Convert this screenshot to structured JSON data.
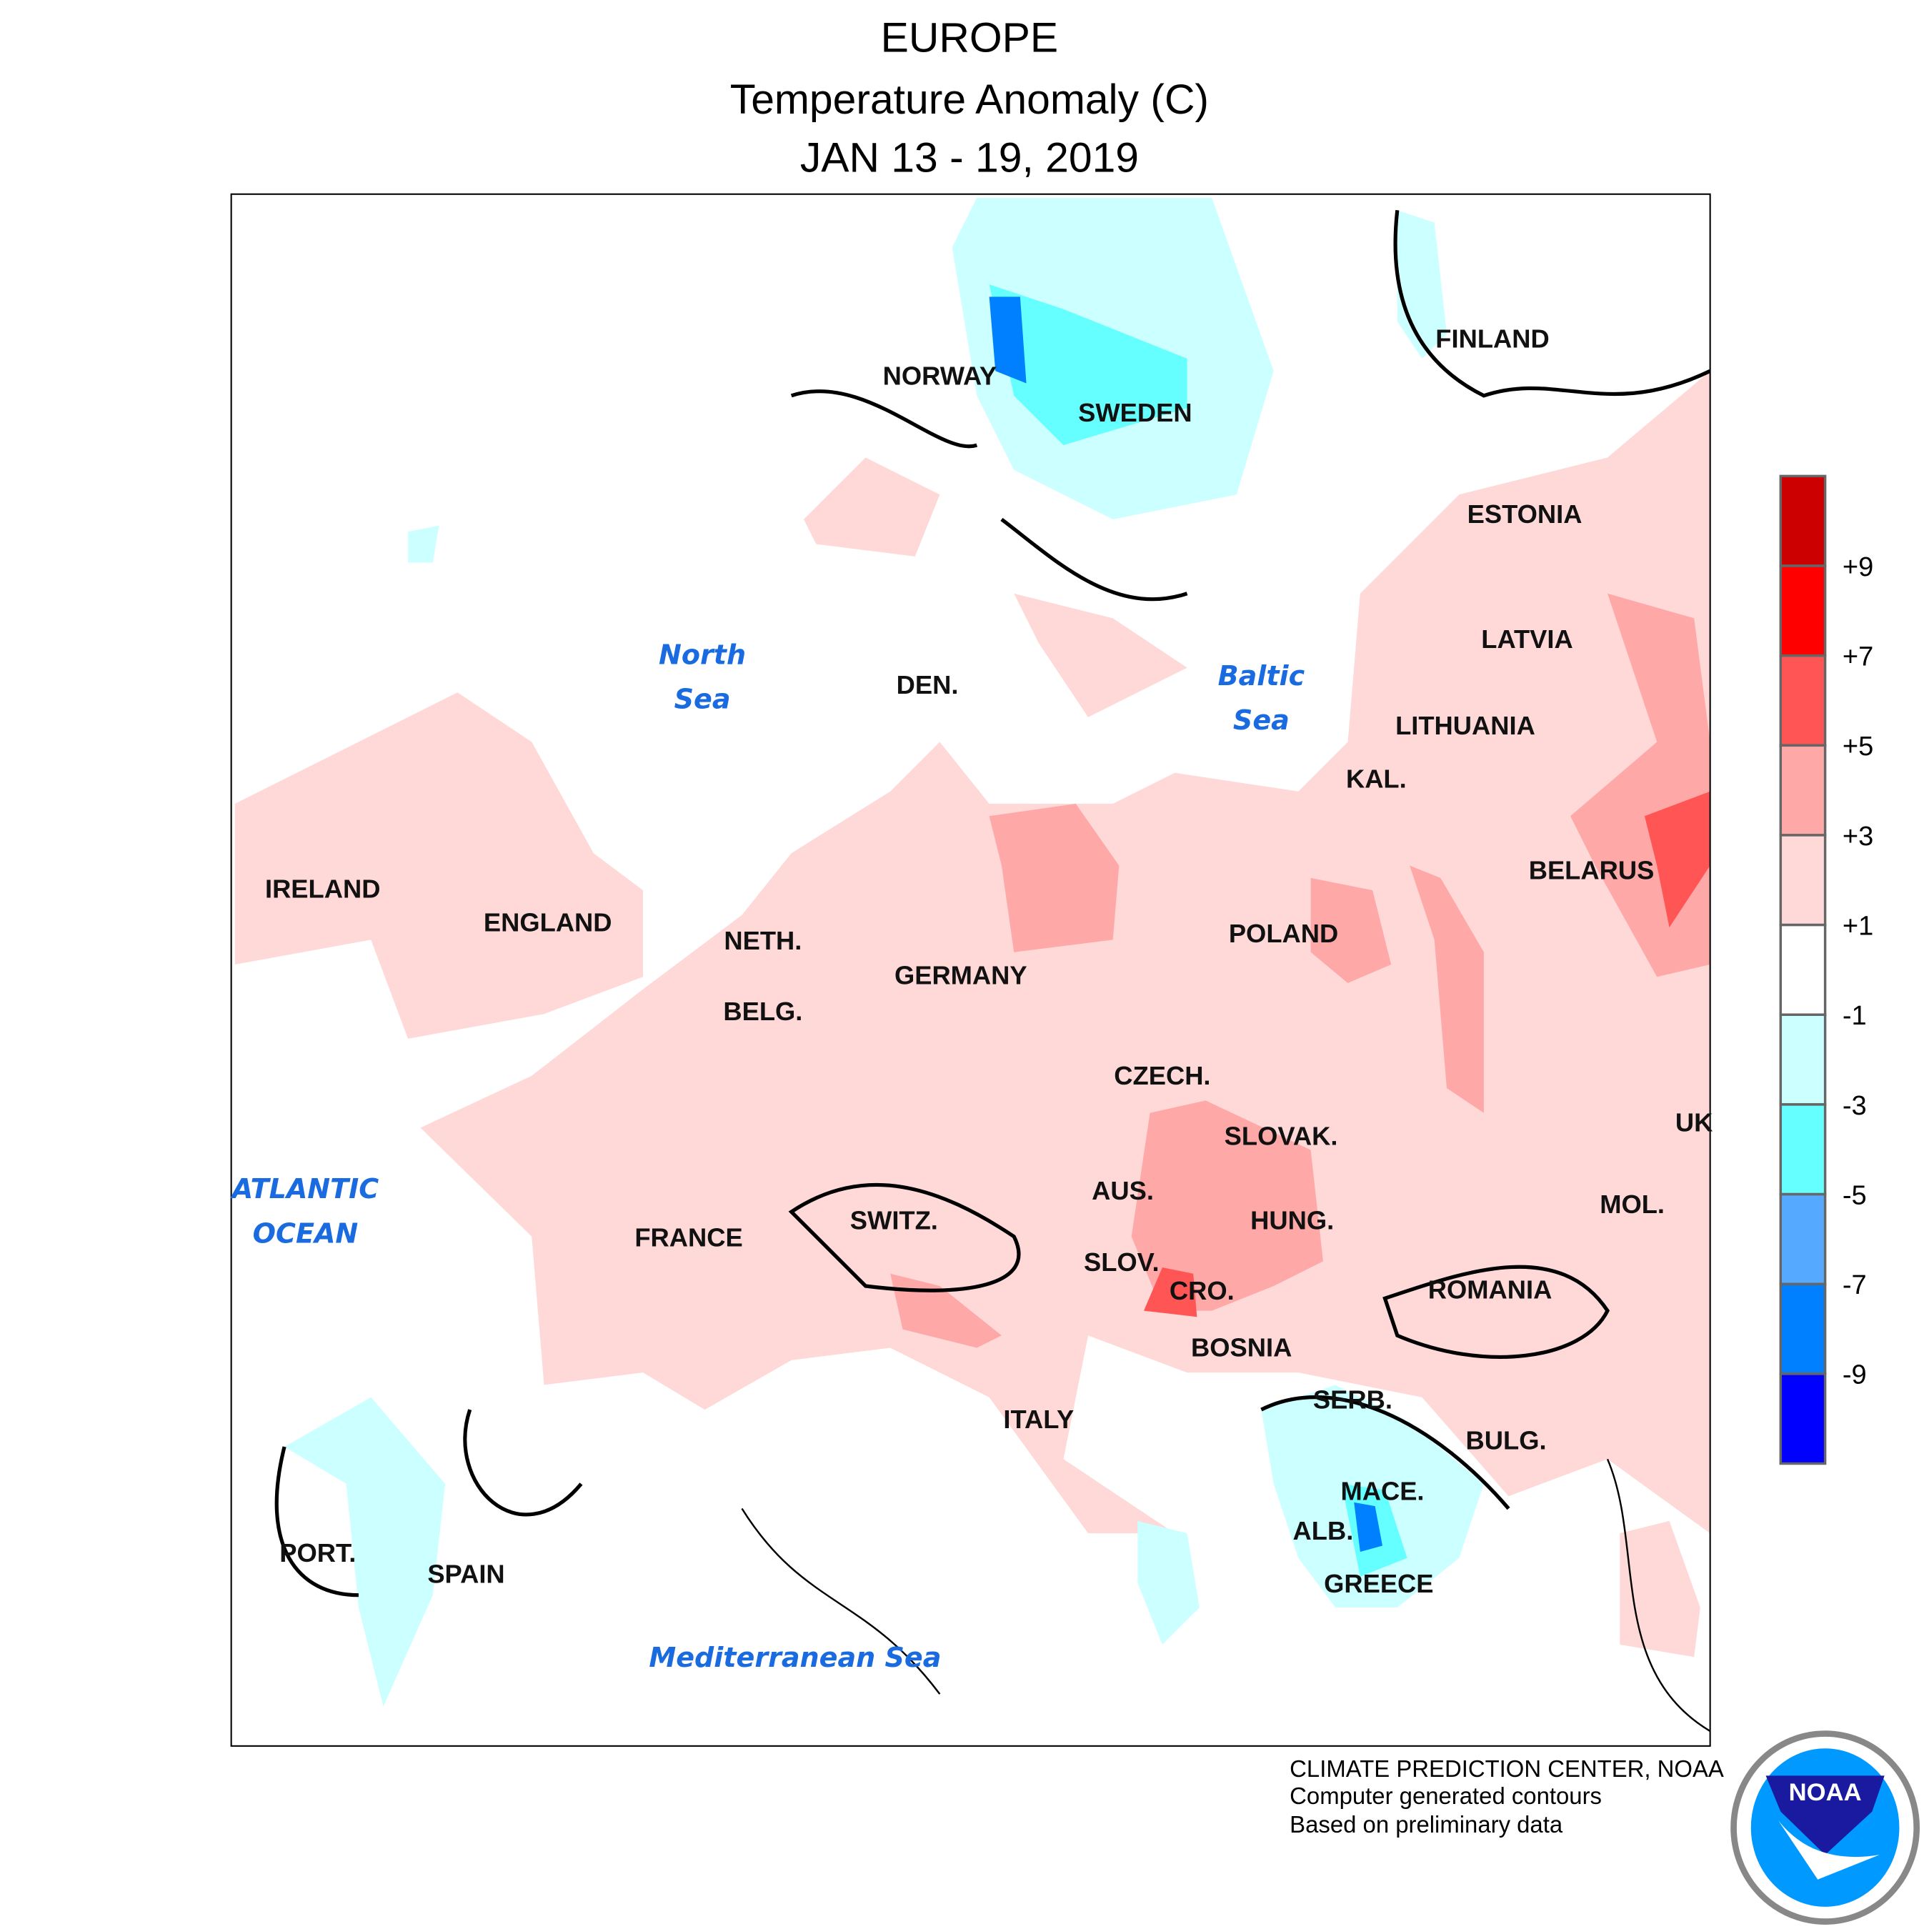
{
  "title": {
    "line1": "EUROPE",
    "line2": "Temperature Anomaly (C)",
    "line3": "JAN 13 - 19, 2019"
  },
  "legend": {
    "colors": [
      "#cc0000",
      "#ff0000",
      "#ff5555",
      "#ffa8a8",
      "#ffd8d8",
      "#ffffff",
      "#ccffff",
      "#66ffff",
      "#55aaff",
      "#0080ff",
      "#0000ff"
    ],
    "labels": [
      "+9",
      "+7",
      "+5",
      "+3",
      "+1",
      "-1",
      "-3",
      "-5",
      "-7",
      "-9"
    ]
  },
  "countries": [
    "NORWAY",
    "SWEDEN",
    "FINLAND",
    "ESTONIA",
    "LATVIA",
    "LITHUANIA",
    "KAL.",
    "BELARUS",
    "POLAND",
    "DEN.",
    "NETH.",
    "GERMANY",
    "BELG.",
    "CZECH.",
    "SLOVAK.",
    "AUS.",
    "HUNG.",
    "SWITZ.",
    "FRANCE",
    "SLOV.",
    "CRO.",
    "ROMANIA",
    "MOL.",
    "UK",
    "BOSNIA",
    "SERB.",
    "BULG.",
    "ITALY",
    "MACE.",
    "ALB.",
    "GREECE",
    "PORT.",
    "SPAIN",
    "IRELAND",
    "ENGLAND"
  ],
  "seas": {
    "north_1": "North",
    "north_2": "Sea",
    "baltic_1": "Baltic",
    "baltic_2": "Sea",
    "atlantic_1": "ATLANTIC",
    "atlantic_2": "OCEAN",
    "med": "Mediterranean Sea"
  },
  "footer": {
    "line1": "CLIMATE PREDICTION CENTER, NOAA",
    "line2": "Computer generated contours",
    "line3": "Based on preliminary data"
  },
  "logo": {
    "text": "NOAA"
  }
}
